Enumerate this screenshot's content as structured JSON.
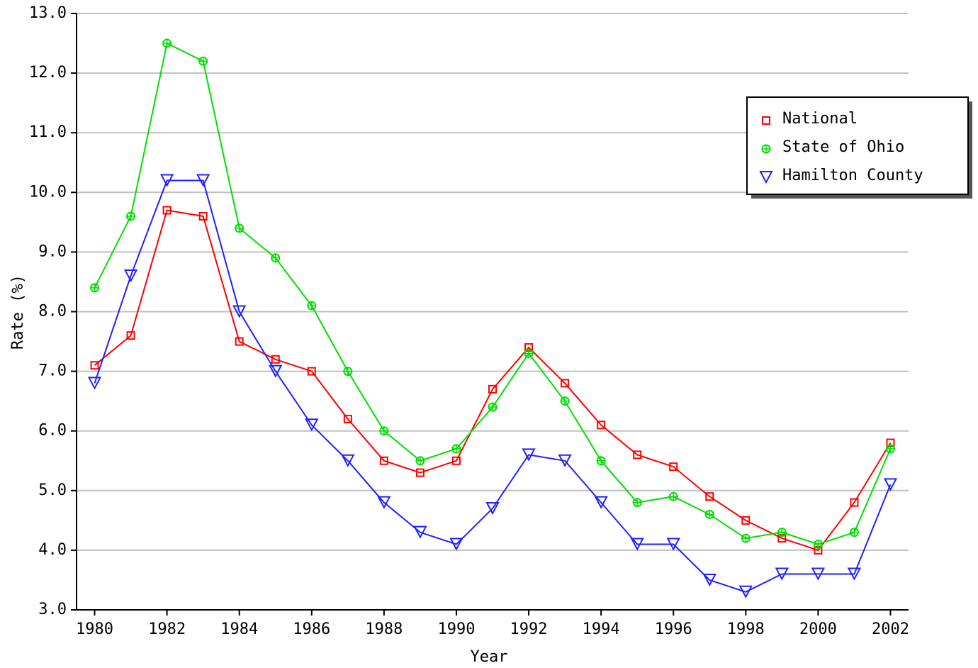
{
  "chart_data": {
    "type": "line",
    "x_label": "Year",
    "y_label": "Rate (%)",
    "x": [
      1980,
      1981,
      1982,
      1983,
      1984,
      1985,
      1986,
      1987,
      1988,
      1989,
      1990,
      1991,
      1992,
      1993,
      1994,
      1995,
      1996,
      1997,
      1998,
      1999,
      2000,
      2001,
      2002
    ],
    "series": [
      {
        "name": "National",
        "color": "#ff0000",
        "marker": "square",
        "values": [
          7.1,
          7.6,
          9.7,
          9.6,
          7.5,
          7.2,
          7.0,
          6.2,
          5.5,
          5.3,
          5.5,
          6.7,
          7.4,
          6.8,
          6.1,
          5.6,
          5.4,
          4.9,
          4.5,
          4.2,
          4.0,
          4.8,
          5.8
        ]
      },
      {
        "name": "State of Ohio",
        "color": "#00e000",
        "marker": "circle",
        "values": [
          8.4,
          9.6,
          12.5,
          12.2,
          9.4,
          8.9,
          8.1,
          7.0,
          6.0,
          5.5,
          5.7,
          6.4,
          7.3,
          6.5,
          5.5,
          4.8,
          4.9,
          4.6,
          4.2,
          4.3,
          4.1,
          4.3,
          5.7
        ]
      },
      {
        "name": "Hamilton County",
        "color": "#2020ff",
        "marker": "triangle-down",
        "values": [
          6.8,
          8.6,
          10.2,
          10.2,
          8.0,
          7.0,
          6.1,
          5.5,
          4.8,
          4.3,
          4.1,
          4.7,
          5.6,
          5.5,
          4.8,
          4.1,
          4.1,
          3.5,
          3.3,
          3.6,
          3.6,
          3.6,
          5.1
        ]
      }
    ],
    "xlim": [
      1979.5,
      2002.5
    ],
    "xticks": [
      1980,
      1982,
      1984,
      1986,
      1988,
      1990,
      1992,
      1994,
      1996,
      1998,
      2000,
      2002
    ],
    "ylim": [
      3,
      13
    ],
    "yticks": [
      {
        "value": 3,
        "label": "3.0"
      },
      {
        "value": 4,
        "label": "4.0"
      },
      {
        "value": 5,
        "label": "5.0"
      },
      {
        "value": 6,
        "label": "6.0"
      },
      {
        "value": 7,
        "label": "7.0"
      },
      {
        "value": 8,
        "label": "8.0"
      },
      {
        "value": 9,
        "label": "9.0"
      },
      {
        "value": 10,
        "label": "10.0"
      },
      {
        "value": 11,
        "label": "11.0"
      },
      {
        "value": 12,
        "label": "12.0"
      },
      {
        "value": 13,
        "label": "13.0"
      }
    ],
    "grid": true,
    "legend": "top-right"
  }
}
